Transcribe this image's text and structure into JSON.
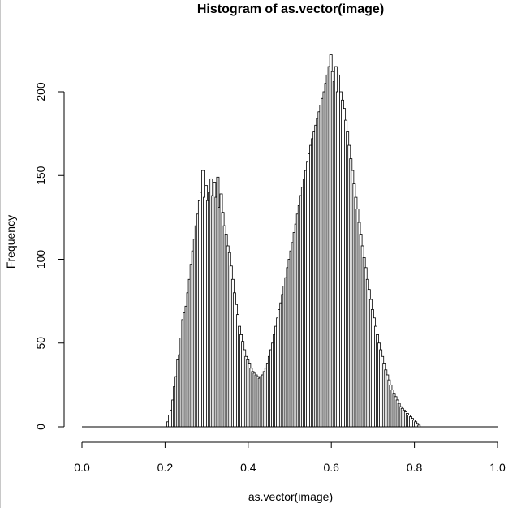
{
  "chart_data": {
    "type": "bar",
    "title": "Histogram of as.vector(image)",
    "xlabel": "as.vector(image)",
    "ylabel": "Frequency",
    "xlim": [
      0,
      1
    ],
    "ylim": [
      0,
      222
    ],
    "bin_width": 0.004,
    "x_ticks": [
      "0.0",
      "0.2",
      "0.4",
      "0.6",
      "0.8",
      "1.0"
    ],
    "y_ticks": [
      "0",
      "50",
      "100",
      "150",
      "200"
    ],
    "bar_color": "#ffffff",
    "edge_color": "#000000",
    "peaks": [
      {
        "x_center": 0.3,
        "count": 153
      },
      {
        "x_center": 0.62,
        "count": 222
      }
    ],
    "bins": [
      [
        0.204,
        0.21,
        3
      ],
      [
        0.208,
        0.214,
        7
      ],
      [
        0.212,
        0.218,
        10
      ],
      [
        0.216,
        0.222,
        16
      ],
      [
        0.22,
        0.226,
        24
      ],
      [
        0.224,
        0.23,
        30
      ],
      [
        0.228,
        0.234,
        40
      ],
      [
        0.232,
        0.238,
        43
      ],
      [
        0.236,
        0.242,
        53
      ],
      [
        0.24,
        0.246,
        64
      ],
      [
        0.244,
        0.25,
        68
      ],
      [
        0.248,
        0.254,
        72
      ],
      [
        0.252,
        0.258,
        80
      ],
      [
        0.256,
        0.262,
        88
      ],
      [
        0.26,
        0.266,
        97
      ],
      [
        0.264,
        0.27,
        105
      ],
      [
        0.268,
        0.274,
        112
      ],
      [
        0.272,
        0.278,
        120
      ],
      [
        0.276,
        0.282,
        127
      ],
      [
        0.28,
        0.286,
        135
      ],
      [
        0.284,
        0.29,
        140
      ],
      [
        0.288,
        0.294,
        153
      ],
      [
        0.292,
        0.298,
        137
      ],
      [
        0.296,
        0.302,
        144
      ],
      [
        0.3,
        0.306,
        135
      ],
      [
        0.304,
        0.31,
        140
      ],
      [
        0.308,
        0.314,
        148
      ],
      [
        0.312,
        0.318,
        138
      ],
      [
        0.316,
        0.322,
        146
      ],
      [
        0.32,
        0.326,
        137
      ],
      [
        0.324,
        0.33,
        149
      ],
      [
        0.328,
        0.334,
        131
      ],
      [
        0.332,
        0.338,
        139
      ],
      [
        0.336,
        0.342,
        128
      ],
      [
        0.34,
        0.346,
        120
      ],
      [
        0.344,
        0.35,
        115
      ],
      [
        0.348,
        0.354,
        108
      ],
      [
        0.352,
        0.358,
        104
      ],
      [
        0.356,
        0.362,
        96
      ],
      [
        0.36,
        0.366,
        88
      ],
      [
        0.364,
        0.37,
        80
      ],
      [
        0.368,
        0.374,
        73
      ],
      [
        0.372,
        0.378,
        67
      ],
      [
        0.376,
        0.382,
        60
      ],
      [
        0.38,
        0.386,
        55
      ],
      [
        0.384,
        0.39,
        51
      ],
      [
        0.388,
        0.394,
        46
      ],
      [
        0.392,
        0.398,
        42
      ],
      [
        0.396,
        0.402,
        40
      ],
      [
        0.4,
        0.406,
        38
      ],
      [
        0.404,
        0.41,
        35
      ],
      [
        0.408,
        0.414,
        33
      ],
      [
        0.412,
        0.418,
        32
      ],
      [
        0.416,
        0.422,
        31
      ],
      [
        0.42,
        0.426,
        30
      ],
      [
        0.424,
        0.43,
        29
      ],
      [
        0.428,
        0.434,
        30
      ],
      [
        0.432,
        0.438,
        31
      ],
      [
        0.436,
        0.442,
        33
      ],
      [
        0.44,
        0.446,
        35
      ],
      [
        0.444,
        0.45,
        38
      ],
      [
        0.448,
        0.454,
        42
      ],
      [
        0.452,
        0.458,
        46
      ],
      [
        0.456,
        0.462,
        50
      ],
      [
        0.46,
        0.466,
        55
      ],
      [
        0.464,
        0.47,
        60
      ],
      [
        0.468,
        0.474,
        65
      ],
      [
        0.472,
        0.478,
        70
      ],
      [
        0.476,
        0.482,
        74
      ],
      [
        0.48,
        0.486,
        79
      ],
      [
        0.484,
        0.49,
        84
      ],
      [
        0.488,
        0.494,
        89
      ],
      [
        0.492,
        0.498,
        95
      ],
      [
        0.496,
        0.502,
        100
      ],
      [
        0.5,
        0.506,
        105
      ],
      [
        0.504,
        0.51,
        110
      ],
      [
        0.508,
        0.514,
        116
      ],
      [
        0.512,
        0.518,
        121
      ],
      [
        0.516,
        0.522,
        127
      ],
      [
        0.52,
        0.526,
        132
      ],
      [
        0.524,
        0.53,
        138
      ],
      [
        0.528,
        0.534,
        143
      ],
      [
        0.532,
        0.538,
        148
      ],
      [
        0.536,
        0.542,
        153
      ],
      [
        0.54,
        0.546,
        158
      ],
      [
        0.544,
        0.55,
        163
      ],
      [
        0.548,
        0.554,
        168
      ],
      [
        0.552,
        0.558,
        172
      ],
      [
        0.556,
        0.562,
        176
      ],
      [
        0.56,
        0.566,
        180
      ],
      [
        0.564,
        0.57,
        184
      ],
      [
        0.568,
        0.574,
        188
      ],
      [
        0.572,
        0.578,
        192
      ],
      [
        0.576,
        0.582,
        196
      ],
      [
        0.58,
        0.586,
        200
      ],
      [
        0.584,
        0.59,
        205
      ],
      [
        0.588,
        0.594,
        210
      ],
      [
        0.592,
        0.598,
        215
      ],
      [
        0.596,
        0.602,
        222
      ],
      [
        0.6,
        0.606,
        212
      ],
      [
        0.604,
        0.61,
        206
      ],
      [
        0.608,
        0.614,
        215
      ],
      [
        0.612,
        0.618,
        200
      ],
      [
        0.616,
        0.62,
        210
      ],
      [
        0.62,
        0.626,
        200
      ],
      [
        0.624,
        0.63,
        195
      ],
      [
        0.628,
        0.634,
        190
      ],
      [
        0.632,
        0.638,
        183
      ],
      [
        0.636,
        0.642,
        176
      ],
      [
        0.64,
        0.646,
        168
      ],
      [
        0.644,
        0.65,
        160
      ],
      [
        0.648,
        0.654,
        153
      ],
      [
        0.652,
        0.658,
        145
      ],
      [
        0.656,
        0.662,
        137
      ],
      [
        0.66,
        0.666,
        130
      ],
      [
        0.664,
        0.67,
        122
      ],
      [
        0.668,
        0.674,
        115
      ],
      [
        0.672,
        0.678,
        108
      ],
      [
        0.676,
        0.682,
        101
      ],
      [
        0.68,
        0.686,
        95
      ],
      [
        0.684,
        0.69,
        88
      ],
      [
        0.688,
        0.694,
        82
      ],
      [
        0.692,
        0.698,
        76
      ],
      [
        0.696,
        0.702,
        70
      ],
      [
        0.7,
        0.706,
        65
      ],
      [
        0.704,
        0.71,
        60
      ],
      [
        0.708,
        0.714,
        55
      ],
      [
        0.712,
        0.718,
        50
      ],
      [
        0.716,
        0.722,
        46
      ],
      [
        0.72,
        0.726,
        42
      ],
      [
        0.724,
        0.73,
        38
      ],
      [
        0.728,
        0.734,
        34
      ],
      [
        0.732,
        0.738,
        31
      ],
      [
        0.736,
        0.742,
        28
      ],
      [
        0.74,
        0.746,
        25
      ],
      [
        0.744,
        0.75,
        22
      ],
      [
        0.748,
        0.754,
        20
      ],
      [
        0.752,
        0.758,
        18
      ],
      [
        0.756,
        0.762,
        16
      ],
      [
        0.76,
        0.766,
        14
      ],
      [
        0.764,
        0.77,
        12
      ],
      [
        0.768,
        0.774,
        11
      ],
      [
        0.772,
        0.778,
        10
      ],
      [
        0.776,
        0.782,
        9
      ],
      [
        0.78,
        0.786,
        8
      ],
      [
        0.784,
        0.79,
        7
      ],
      [
        0.788,
        0.794,
        6
      ],
      [
        0.792,
        0.798,
        5
      ],
      [
        0.796,
        0.802,
        4
      ],
      [
        0.8,
        0.806,
        3
      ],
      [
        0.804,
        0.81,
        2
      ],
      [
        0.808,
        0.814,
        1
      ]
    ]
  }
}
